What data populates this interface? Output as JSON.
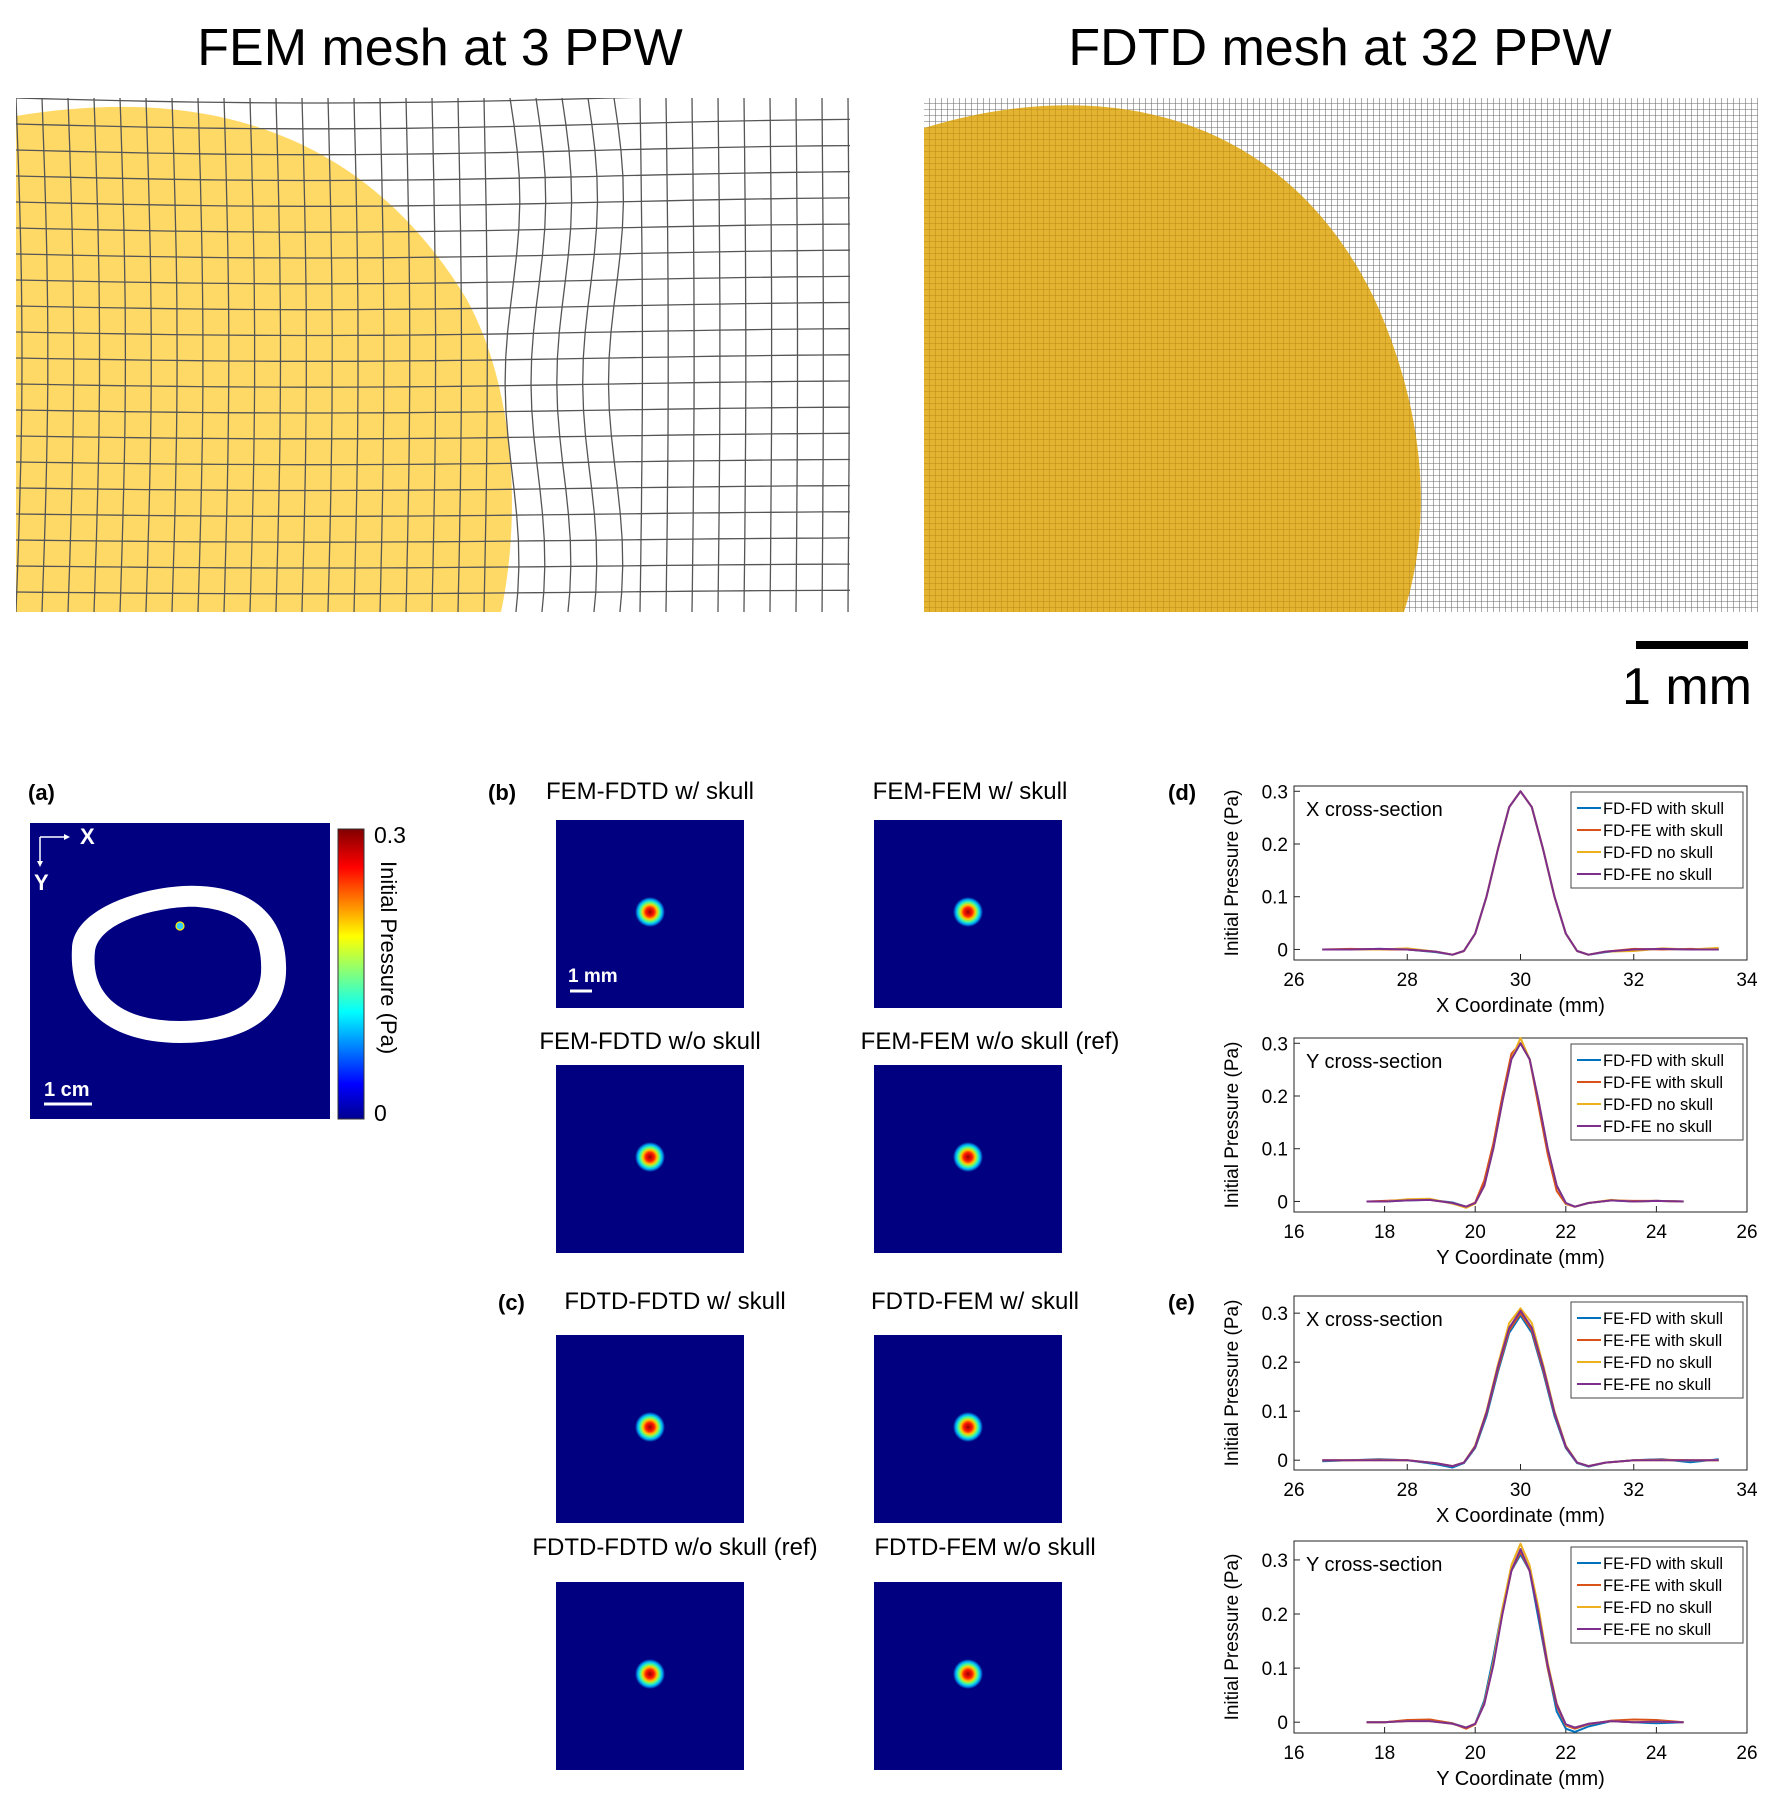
{
  "mesh": {
    "fem_title": "FEM mesh at 3 PPW",
    "fdtd_title": "FDTD mesh at 32 PPW",
    "scalebar_label": "1 mm",
    "fill_color": "#ffd966",
    "fdtd_fill_color": "#e6b62e"
  },
  "panel_a": {
    "letter": "(a)",
    "axis_x": "X",
    "axis_y": "Y",
    "scalebar_label": "1 cm",
    "colorbar": {
      "max_label": "0.3",
      "min_label": "0",
      "label": "Initial Pressure (Pa)"
    },
    "background_color": "#000080"
  },
  "panel_b": {
    "letter": "(b)",
    "titles": [
      "FEM-FDTD w/ skull",
      "FEM-FEM w/ skull",
      "FEM-FDTD w/o skull",
      "FEM-FEM w/o skull (ref)"
    ],
    "scalebar_label": "1 mm"
  },
  "panel_c": {
    "letter": "(c)",
    "titles": [
      "FDTD-FDTD w/ skull",
      "FDTD-FEM w/ skull",
      "FDTD-FDTD w/o skull (ref)",
      "FDTD-FEM w/o skull"
    ]
  },
  "panel_d": {
    "letter": "(d)"
  },
  "panel_e": {
    "letter": "(e)"
  },
  "chart_data": [
    {
      "type": "line",
      "annotation": "X cross-section",
      "xlabel": "X Coordinate (mm)",
      "ylabel": "Initial Pressure (Pa)",
      "xlim": [
        26,
        34
      ],
      "ylim": [
        -0.02,
        0.31
      ],
      "xticks": [
        26,
        28,
        30,
        32,
        34
      ],
      "yticks": [
        0,
        0.1,
        0.2,
        0.3
      ],
      "legend_position": "top-right",
      "x": [
        26.5,
        27,
        27.5,
        28,
        28.5,
        28.8,
        29,
        29.2,
        29.4,
        29.6,
        29.8,
        30,
        30.2,
        30.4,
        30.6,
        30.8,
        31,
        31.2,
        31.5,
        32,
        32.5,
        33,
        33.5
      ],
      "series": [
        {
          "name": "FD-FD with skull",
          "color": "#0072bd",
          "values": [
            0,
            0,
            0.001,
            0,
            -0.005,
            -0.01,
            -0.003,
            0.03,
            0.1,
            0.19,
            0.27,
            0.3,
            0.27,
            0.19,
            0.1,
            0.03,
            -0.003,
            -0.01,
            -0.005,
            0,
            0.001,
            0,
            0
          ]
        },
        {
          "name": "FD-FE with skull",
          "color": "#d95319",
          "values": [
            0,
            0.001,
            0,
            0,
            -0.004,
            -0.01,
            -0.003,
            0.03,
            0.1,
            0.19,
            0.27,
            0.3,
            0.27,
            0.19,
            0.1,
            0.03,
            -0.003,
            -0.01,
            -0.004,
            0.001,
            0,
            0.001,
            0
          ]
        },
        {
          "name": "FD-FD no skull",
          "color": "#edb120",
          "values": [
            0,
            0,
            0,
            0.002,
            -0.004,
            -0.01,
            -0.003,
            0.03,
            0.1,
            0.19,
            0.27,
            0.3,
            0.27,
            0.19,
            0.1,
            0.03,
            -0.003,
            -0.01,
            -0.004,
            -0.003,
            0.002,
            0,
            0.003
          ]
        },
        {
          "name": "FD-FE no skull",
          "color": "#7e2f8e",
          "values": [
            0,
            0,
            0.001,
            0,
            -0.004,
            -0.01,
            -0.003,
            0.03,
            0.1,
            0.19,
            0.27,
            0.3,
            0.27,
            0.19,
            0.1,
            0.03,
            -0.003,
            -0.01,
            -0.004,
            0,
            0.001,
            0,
            0
          ]
        }
      ]
    },
    {
      "type": "line",
      "annotation": "Y cross-section",
      "xlabel": "Y Coordinate (mm)",
      "ylabel": "Initial Pressure (Pa)",
      "xlim": [
        16,
        26
      ],
      "ylim": [
        -0.02,
        0.31
      ],
      "xticks": [
        16,
        18,
        20,
        22,
        24,
        26
      ],
      "yticks": [
        0,
        0.1,
        0.2,
        0.3
      ],
      "legend_position": "top-right",
      "x": [
        17.6,
        18,
        18.5,
        19,
        19.5,
        19.8,
        20,
        20.2,
        20.4,
        20.6,
        20.8,
        21,
        21.2,
        21.4,
        21.6,
        21.8,
        22,
        22.2,
        22.5,
        23,
        23.5,
        24,
        24.6
      ],
      "series": [
        {
          "name": "FD-FD with skull",
          "color": "#0072bd",
          "values": [
            0,
            0,
            0.002,
            0.003,
            -0.002,
            -0.01,
            -0.003,
            0.03,
            0.1,
            0.19,
            0.27,
            0.3,
            0.27,
            0.19,
            0.1,
            0.03,
            -0.003,
            -0.01,
            -0.003,
            0.002,
            0,
            0.001,
            0
          ]
        },
        {
          "name": "FD-FE with skull",
          "color": "#d95319",
          "values": [
            0,
            0.001,
            0.003,
            0.003,
            -0.003,
            -0.01,
            -0.002,
            0.04,
            0.11,
            0.2,
            0.28,
            0.3,
            0.27,
            0.18,
            0.09,
            0.02,
            -0.005,
            -0.01,
            -0.003,
            0.002,
            0.001,
            0.001,
            0
          ]
        },
        {
          "name": "FD-FD no skull",
          "color": "#edb120",
          "values": [
            0,
            0,
            0.004,
            0.005,
            -0.004,
            -0.012,
            -0.004,
            0.03,
            0.1,
            0.19,
            0.27,
            0.31,
            0.27,
            0.19,
            0.1,
            0.03,
            -0.004,
            -0.01,
            -0.003,
            0.003,
            0,
            0.001,
            0
          ]
        },
        {
          "name": "FD-FE no skull",
          "color": "#7e2f8e",
          "values": [
            0,
            0,
            0.002,
            0.003,
            -0.003,
            -0.01,
            -0.003,
            0.03,
            0.1,
            0.19,
            0.27,
            0.3,
            0.27,
            0.19,
            0.1,
            0.03,
            -0.003,
            -0.01,
            -0.003,
            0.002,
            0,
            0.001,
            0
          ]
        }
      ]
    },
    {
      "type": "line",
      "annotation": "X cross-section",
      "xlabel": "X Coordinate (mm)",
      "ylabel": "Initial Pressure (Pa)",
      "xlim": [
        26,
        34
      ],
      "ylim": [
        -0.02,
        0.335
      ],
      "xticks": [
        26,
        28,
        30,
        32,
        34
      ],
      "yticks": [
        0,
        0.1,
        0.2,
        0.3
      ],
      "legend_position": "top-right",
      "x": [
        26.5,
        27,
        27.5,
        28,
        28.5,
        28.8,
        29,
        29.2,
        29.4,
        29.6,
        29.8,
        30,
        30.2,
        30.4,
        30.6,
        30.8,
        31,
        31.2,
        31.5,
        32,
        32.5,
        33,
        33.5
      ],
      "series": [
        {
          "name": "FE-FD with skull",
          "color": "#0072bd",
          "values": [
            -0.002,
            0,
            0.002,
            0,
            -0.008,
            -0.015,
            -0.006,
            0.025,
            0.09,
            0.18,
            0.26,
            0.295,
            0.26,
            0.18,
            0.09,
            0.025,
            -0.006,
            -0.013,
            -0.005,
            0,
            0.002,
            -0.004,
            0.002
          ]
        },
        {
          "name": "FE-FE with skull",
          "color": "#d95319",
          "values": [
            0,
            0,
            0.001,
            0,
            -0.006,
            -0.012,
            -0.005,
            0.027,
            0.095,
            0.185,
            0.265,
            0.3,
            0.265,
            0.185,
            0.095,
            0.027,
            -0.005,
            -0.012,
            -0.005,
            0,
            0.001,
            0,
            0
          ]
        },
        {
          "name": "FE-FD no skull",
          "color": "#edb120",
          "values": [
            0,
            0,
            0,
            0,
            -0.006,
            -0.012,
            -0.005,
            0.03,
            0.1,
            0.195,
            0.28,
            0.31,
            0.28,
            0.195,
            0.1,
            0.03,
            -0.005,
            -0.012,
            -0.005,
            0,
            0,
            0,
            0
          ]
        },
        {
          "name": "FE-FE no skull",
          "color": "#7e2f8e",
          "values": [
            0,
            0,
            0,
            0,
            -0.006,
            -0.012,
            -0.005,
            0.028,
            0.097,
            0.19,
            0.27,
            0.305,
            0.27,
            0.19,
            0.097,
            0.028,
            -0.005,
            -0.012,
            -0.005,
            0,
            0,
            0,
            0
          ]
        }
      ]
    },
    {
      "type": "line",
      "annotation": "Y cross-section",
      "xlabel": "Y Coordinate (mm)",
      "ylabel": "Initial Pressure (Pa)",
      "xlim": [
        16,
        26
      ],
      "ylim": [
        -0.02,
        0.335
      ],
      "xticks": [
        16,
        18,
        20,
        22,
        24,
        26
      ],
      "yticks": [
        0,
        0.1,
        0.2,
        0.3
      ],
      "legend_position": "top-right",
      "x": [
        17.6,
        18,
        18.5,
        19,
        19.5,
        19.8,
        20,
        20.2,
        20.4,
        20.6,
        20.8,
        21,
        21.2,
        21.4,
        21.6,
        21.8,
        22,
        22.2,
        22.5,
        23,
        23.5,
        24,
        24.6
      ],
      "series": [
        {
          "name": "FE-FD with skull",
          "color": "#0072bd",
          "values": [
            0,
            0,
            0.003,
            0.004,
            -0.002,
            -0.01,
            -0.003,
            0.04,
            0.12,
            0.21,
            0.28,
            0.31,
            0.28,
            0.19,
            0.1,
            0.02,
            -0.012,
            -0.018,
            -0.008,
            0.002,
            0,
            -0.002,
            0
          ]
        },
        {
          "name": "FE-FE with skull",
          "color": "#d95319",
          "values": [
            0,
            0,
            0.004,
            0.005,
            -0.002,
            -0.012,
            -0.004,
            0.035,
            0.11,
            0.2,
            0.28,
            0.315,
            0.28,
            0.2,
            0.1,
            0.03,
            -0.006,
            -0.012,
            -0.004,
            0.003,
            0.005,
            0.004,
            0
          ]
        },
        {
          "name": "FE-FD no skull",
          "color": "#edb120",
          "values": [
            0,
            0,
            0.002,
            0.002,
            -0.003,
            -0.01,
            -0.003,
            0.035,
            0.11,
            0.21,
            0.29,
            0.33,
            0.29,
            0.21,
            0.11,
            0.035,
            -0.005,
            -0.01,
            -0.003,
            0.002,
            0,
            0.001,
            0
          ]
        },
        {
          "name": "FE-FE no skull",
          "color": "#7e2f8e",
          "values": [
            0,
            0,
            0.002,
            0.002,
            -0.003,
            -0.01,
            -0.003,
            0.033,
            0.105,
            0.2,
            0.28,
            0.32,
            0.28,
            0.2,
            0.105,
            0.033,
            -0.004,
            -0.01,
            -0.003,
            0.002,
            0,
            0.001,
            0
          ]
        }
      ]
    }
  ]
}
